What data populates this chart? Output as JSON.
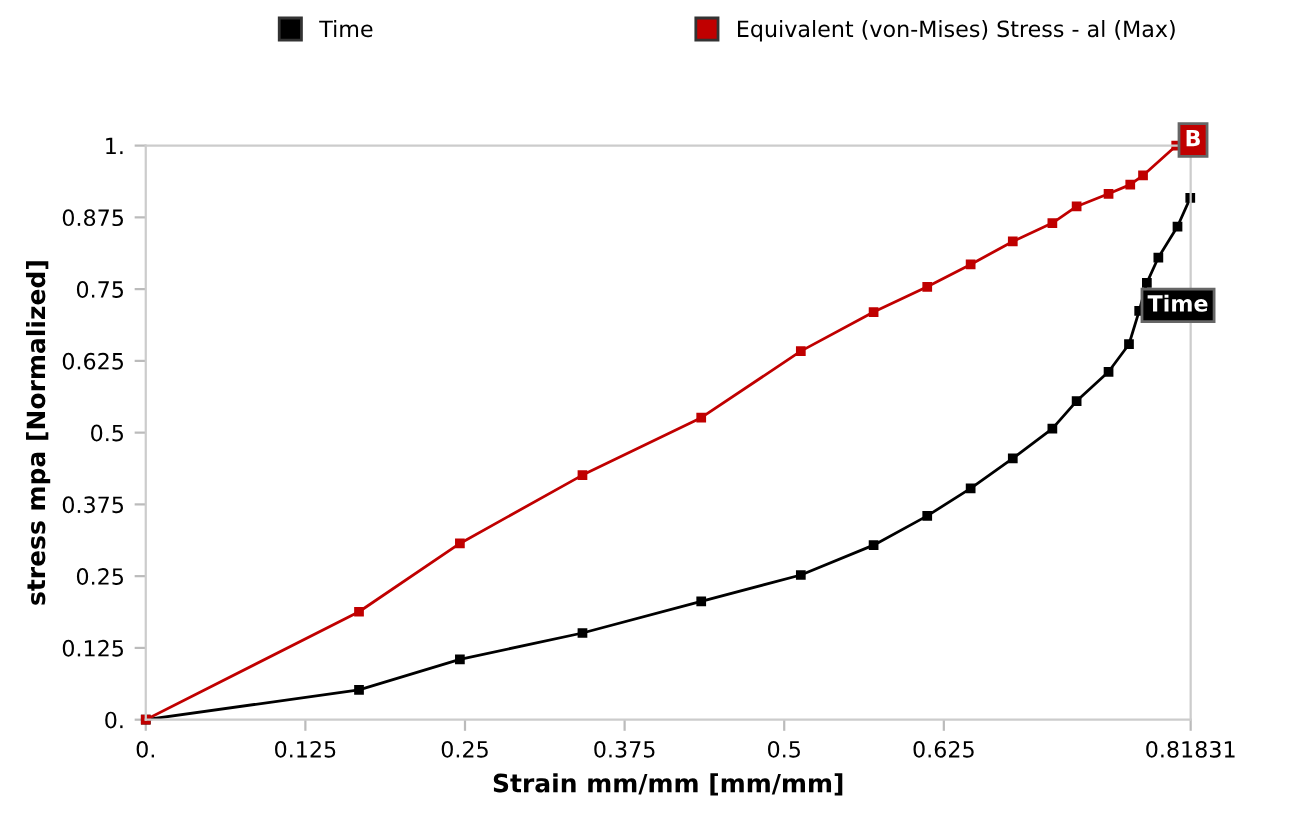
{
  "chart_data": {
    "type": "line",
    "xlabel": "Strain mm/mm [mm/mm]",
    "ylabel": "stress mpa [Normalized]",
    "xlim": [
      0,
      0.81831
    ],
    "xticks": [
      {
        "value": 0,
        "label": "0."
      },
      0.125,
      0.25,
      0.375,
      0.5,
      0.625,
      0.81831
    ],
    "ylim": [
      0,
      1
    ],
    "yticks": [
      {
        "value": 0,
        "label": "0."
      },
      0.125,
      0.25,
      0.375,
      0.5,
      0.625,
      0.75,
      0.875,
      {
        "value": 1,
        "label": "1."
      }
    ],
    "grid": false,
    "legend": "top",
    "marker": "square",
    "line_style": "solid",
    "series": [
      {
        "name": "Time",
        "color": "#000000",
        "x": [
          0,
          0.167,
          0.246,
          0.342,
          0.435,
          0.513,
          0.57,
          0.612,
          0.646,
          0.679,
          0.71,
          0.729,
          0.754,
          0.77,
          0.778,
          0.784,
          0.793,
          0.808,
          0.818
        ],
        "values": [
          0,
          0.052,
          0.105,
          0.151,
          0.206,
          0.252,
          0.304,
          0.355,
          0.403,
          0.455,
          0.507,
          0.555,
          0.606,
          0.654,
          0.712,
          0.761,
          0.805,
          0.859,
          0.909
        ]
      },
      {
        "name": "Equivalent (von-Mises) Stress - al (Max)",
        "color": "#c00000",
        "x": [
          0,
          0.167,
          0.246,
          0.342,
          0.435,
          0.513,
          0.57,
          0.612,
          0.646,
          0.679,
          0.71,
          0.729,
          0.754,
          0.771,
          0.781,
          0.807
        ],
        "values": [
          0,
          0.188,
          0.307,
          0.426,
          0.526,
          0.642,
          0.71,
          0.754,
          0.793,
          0.833,
          0.865,
          0.894,
          0.916,
          0.932,
          0.948,
          1.0
        ]
      }
    ],
    "annotations": [
      {
        "text": "B",
        "x": 0.807,
        "y": 1.0
      },
      {
        "text": "Time",
        "x": 0.778,
        "y": 0.712
      }
    ]
  }
}
